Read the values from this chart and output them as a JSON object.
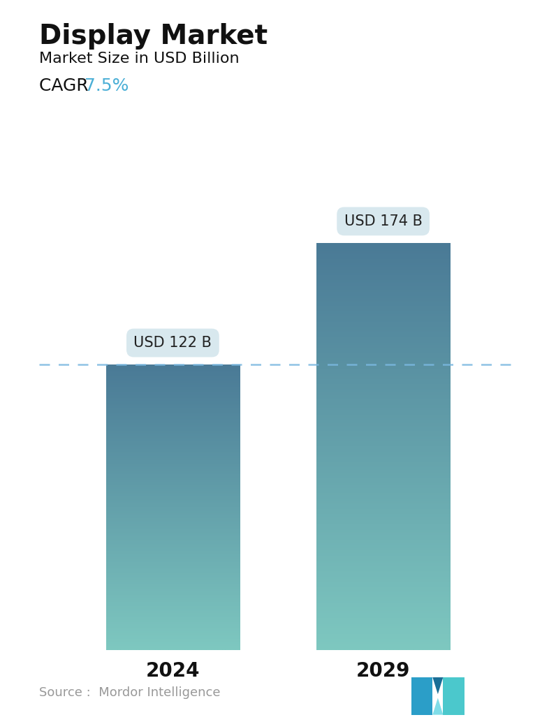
{
  "title": "Display Market",
  "subtitle": "Market Size in USD Billion",
  "cagr_label": "CAGR",
  "cagr_value": "7.5%",
  "cagr_color": "#4BAFD6",
  "categories": [
    "2024",
    "2029"
  ],
  "values": [
    122,
    174
  ],
  "bar_labels": [
    "USD 122 B",
    "USD 174 B"
  ],
  "bar_color_top": "#4A7A96",
  "bar_color_bottom": "#7EC8C0",
  "dashed_line_color": "#7AB8E0",
  "dashed_line_value": 122,
  "source_text": "Source :  Mordor Intelligence",
  "source_color": "#999999",
  "background_color": "#ffffff",
  "title_fontsize": 28,
  "subtitle_fontsize": 16,
  "cagr_fontsize": 18,
  "label_fontsize": 15,
  "tick_fontsize": 20,
  "ylim": [
    0,
    210
  ],
  "bar_width": 0.28,
  "x_positions": [
    0.28,
    0.72
  ],
  "callout_bg": "#D8E8EE",
  "callout_text_color": "#222222",
  "logo_colors": [
    "#2B9EC8",
    "#1A6E96",
    "#4BC8CC",
    "#80DDE8"
  ]
}
